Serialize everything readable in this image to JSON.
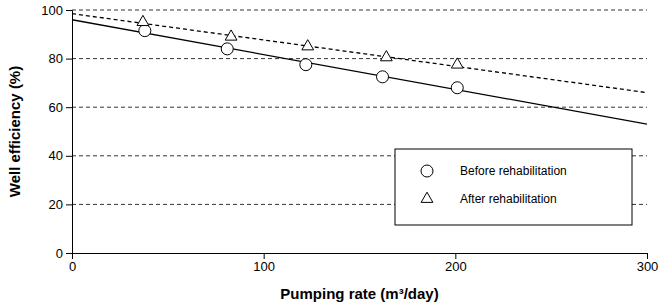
{
  "chart_data": {
    "type": "scatter",
    "x_label": "Pumping rate (m³/day)",
    "y_label": "Well efficiency (%)",
    "xlim": [
      0,
      300
    ],
    "xticks": [
      0,
      100,
      200,
      300
    ],
    "ylim": [
      0,
      100
    ],
    "yticks": [
      0,
      20,
      40,
      60,
      80,
      100
    ],
    "grid": true,
    "legend": "lower right",
    "series": [
      {
        "name": "Before rehabilitation",
        "type": "scatter",
        "marker": "circle",
        "color": "#000000",
        "x": [
          38,
          81,
          122,
          162,
          201
        ],
        "values": [
          91.5,
          84,
          77.5,
          72.5,
          68
        ]
      },
      {
        "name": "After rehabilitation",
        "type": "scatter",
        "marker": "triangle",
        "color": "#000000",
        "x": [
          37,
          83,
          123,
          164,
          201
        ],
        "values": [
          95,
          89,
          85,
          80.5,
          77.5
        ]
      },
      {
        "type": "line",
        "line_style": "solid",
        "color": "#000000",
        "x": [
          0,
          300
        ],
        "values": [
          96,
          53
        ]
      },
      {
        "type": "line",
        "line_style": "dashed",
        "color": "#000000",
        "x": [
          0,
          300
        ],
        "values": [
          98.5,
          66
        ]
      }
    ]
  }
}
